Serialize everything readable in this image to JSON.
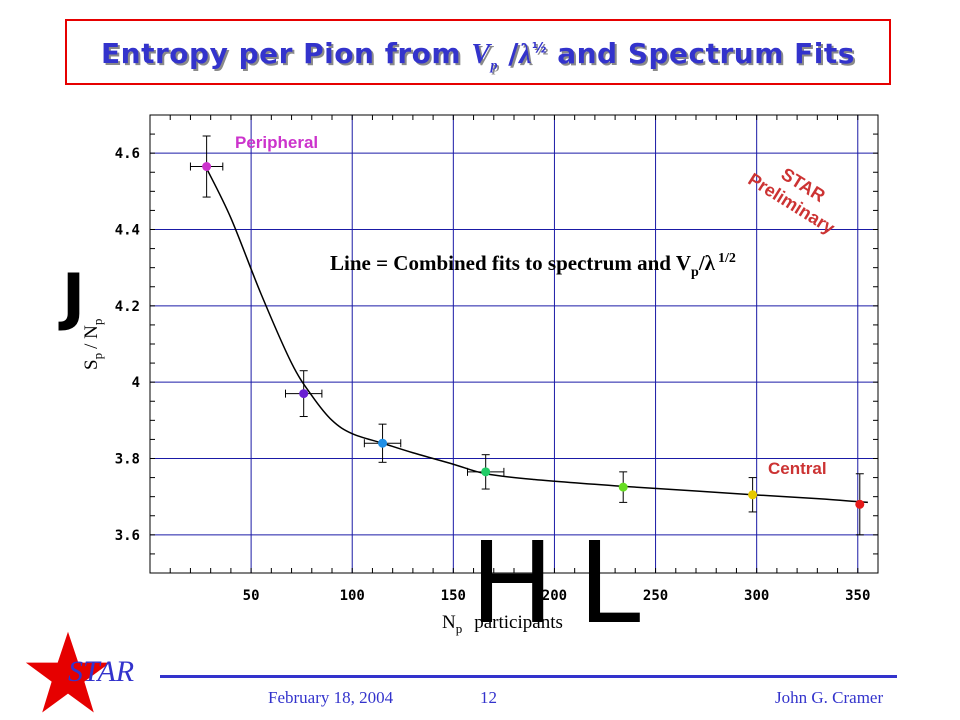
{
  "slide": {
    "title_prefix": "Entropy per Pion from ",
    "title_symbol": "V",
    "title_subscript": "p",
    "title_mid": " /",
    "title_lambda": "λ",
    "title_power": "½",
    "title_suffix": " and Spectrum Fits",
    "footer_date": "February 18, 2004",
    "footer_page": "12",
    "footer_author": "John G. Cramer",
    "logo_text": "STAR",
    "overlay_glyphs": [
      "J",
      "H",
      "L"
    ]
  },
  "colors": {
    "title": "#3333cc",
    "title_border": "#e60000",
    "grid": "#1a1aa6",
    "accent_label": "#cc3333",
    "peripheral_label": "#cc33cc",
    "logo": "#e60000"
  },
  "chart_data": {
    "type": "scatter",
    "xlabel_main": "N",
    "xlabel_sub": "p",
    "xlabel_rest": "participants",
    "ylabel_main": "S",
    "ylabel_sub": "p",
    "ylabel_rest": "/ N",
    "ylabel_sub2": "p",
    "xlim": [
      0,
      360
    ],
    "ylim": [
      3.5,
      4.7
    ],
    "x_ticks": [
      50,
      100,
      150,
      200,
      250,
      300,
      350
    ],
    "y_ticks": [
      3.6,
      3.8,
      4.0,
      4.2,
      4.4,
      4.6
    ],
    "x_tick_labels": [
      "50",
      "100",
      "150",
      "200",
      "250",
      "300",
      "350"
    ],
    "y_tick_labels": [
      "3.6",
      "3.8",
      "4",
      "4.2",
      "4.4",
      "4.6"
    ],
    "grid": true,
    "points": [
      {
        "x": 28,
        "y": 4.565,
        "yerr": 0.08,
        "xerr": 8,
        "color": "#cc33cc"
      },
      {
        "x": 76,
        "y": 3.97,
        "yerr": 0.06,
        "xerr": 9,
        "color": "#6a1fd1"
      },
      {
        "x": 115,
        "y": 3.84,
        "yerr": 0.05,
        "xerr": 9,
        "color": "#1f8fe6"
      },
      {
        "x": 166,
        "y": 3.765,
        "yerr": 0.045,
        "xerr": 9,
        "color": "#22cc66"
      },
      {
        "x": 234,
        "y": 3.725,
        "yerr": 0.04,
        "xerr": 0,
        "color": "#66dd22"
      },
      {
        "x": 298,
        "y": 3.705,
        "yerr": 0.045,
        "xerr": 0,
        "color": "#e6c800"
      },
      {
        "x": 351,
        "y": 3.68,
        "yerr": 0.08,
        "xerr": 0,
        "color": "#e61a1a"
      }
    ],
    "fit_line": {
      "x": [
        28,
        40,
        55,
        70,
        80,
        90,
        100,
        115,
        130,
        150,
        166,
        190,
        234,
        270,
        298,
        330,
        355
      ],
      "y": [
        4.56,
        4.43,
        4.23,
        4.05,
        3.965,
        3.9,
        3.865,
        3.84,
        3.815,
        3.785,
        3.76,
        3.745,
        3.727,
        3.715,
        3.705,
        3.695,
        3.685
      ]
    },
    "annotations": {
      "peripheral": "Peripheral",
      "central": "Central",
      "preliminary_line1": "STAR",
      "preliminary_line2": "Preliminary",
      "line_note_text": "Line = Combined fits to spectrum and V",
      "line_note_sub": "p",
      "line_note_slash": "/",
      "line_note_lambda": "λ",
      "line_note_power": "1/2"
    }
  }
}
